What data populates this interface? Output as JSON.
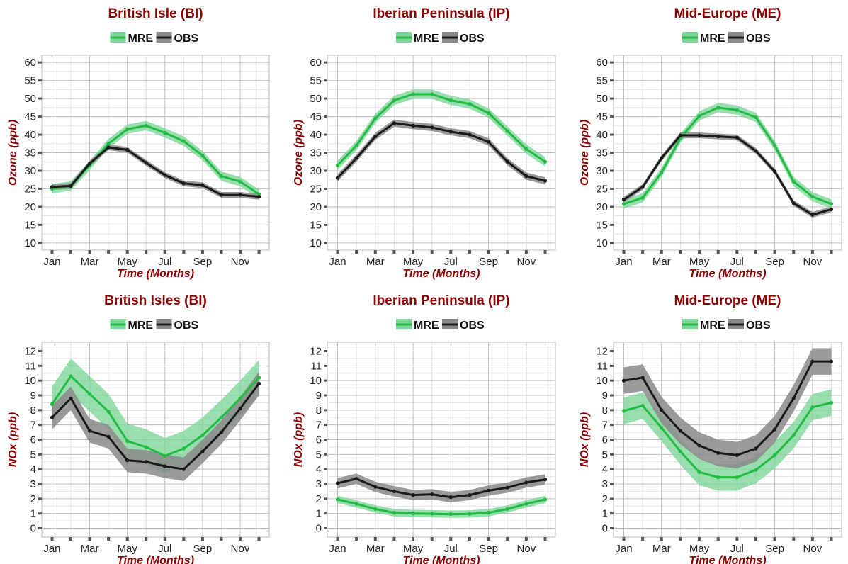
{
  "figure": {
    "colors": {
      "title": "#8B0000",
      "axis_label": "#8B0000",
      "mre_line": "#22BB44",
      "mre_band": "#7FD69A",
      "obs_line": "#1A1A1A",
      "obs_band": "#8A8A8A",
      "panel_border": "#BBBBBB",
      "grid_major": "#BDBDBD",
      "grid_minor": "#E2E2E2"
    }
  },
  "chart_data": [
    {
      "type": "line",
      "title": "British Isle (BI)",
      "xlabel": "Time (Months)",
      "ylabel": "Ozone (ppb)",
      "x_ticks": [
        "Jan",
        "Mar",
        "May",
        "Jul",
        "Sep",
        "Nov"
      ],
      "y_ticks": [
        10,
        15,
        20,
        25,
        30,
        35,
        40,
        45,
        50,
        55,
        60
      ],
      "ylim": [
        8,
        62
      ],
      "legend": [
        "MRE",
        "OBS"
      ],
      "legend_position": "top",
      "grid": true,
      "x": [
        "Jan",
        "Feb",
        "Mar",
        "Apr",
        "May",
        "Jun",
        "Jul",
        "Aug",
        "Sep",
        "Oct",
        "Nov",
        "Dec"
      ],
      "series": [
        {
          "name": "MRE",
          "values": [
            25.0,
            25.8,
            31.5,
            37.5,
            41.5,
            42.5,
            40.5,
            38.2,
            34.2,
            28.5,
            27.0,
            23.5
          ],
          "band": 1.3
        },
        {
          "name": "OBS",
          "values": [
            25.5,
            25.8,
            32.0,
            36.5,
            35.8,
            32.2,
            28.8,
            26.5,
            26.0,
            23.3,
            23.3,
            22.8
          ],
          "band": 0.8
        }
      ]
    },
    {
      "type": "line",
      "title": "Iberian Peninsula (IP)",
      "xlabel": "Time (Months)",
      "ylabel": "Ozone (ppb)",
      "x_ticks": [
        "Jan",
        "Mar",
        "May",
        "Jul",
        "Sep",
        "Nov"
      ],
      "y_ticks": [
        10,
        15,
        20,
        25,
        30,
        35,
        40,
        45,
        50,
        55,
        60
      ],
      "ylim": [
        8,
        62
      ],
      "legend": [
        "MRE",
        "OBS"
      ],
      "legend_position": "top",
      "grid": true,
      "x": [
        "Jan",
        "Feb",
        "Mar",
        "Apr",
        "May",
        "Jun",
        "Jul",
        "Aug",
        "Sep",
        "Oct",
        "Nov",
        "Dec"
      ],
      "series": [
        {
          "name": "MRE",
          "values": [
            31.5,
            37.0,
            44.5,
            49.5,
            51.2,
            51.2,
            49.5,
            48.5,
            46.0,
            41.0,
            36.0,
            32.5
          ],
          "band": 1.3
        },
        {
          "name": "OBS",
          "values": [
            28.0,
            33.5,
            39.5,
            43.2,
            42.5,
            42.0,
            40.8,
            40.0,
            38.0,
            32.5,
            28.5,
            27.2
          ],
          "band": 1.0
        }
      ]
    },
    {
      "type": "line",
      "title": "Mid-Europe (ME)",
      "xlabel": "Time (Months)",
      "ylabel": "Ozone (ppb)",
      "x_ticks": [
        "Jan",
        "Mar",
        "May",
        "Jul",
        "Sep",
        "Nov"
      ],
      "y_ticks": [
        10,
        15,
        20,
        25,
        30,
        35,
        40,
        45,
        50,
        55,
        60
      ],
      "ylim": [
        8,
        62
      ],
      "legend": [
        "MRE",
        "OBS"
      ],
      "legend_position": "top",
      "grid": true,
      "x": [
        "Jan",
        "Feb",
        "Mar",
        "Apr",
        "May",
        "Jun",
        "Jul",
        "Aug",
        "Sep",
        "Oct",
        "Nov",
        "Dec"
      ],
      "series": [
        {
          "name": "MRE",
          "values": [
            20.8,
            22.5,
            29.5,
            39.0,
            45.2,
            47.5,
            46.8,
            44.8,
            37.0,
            27.0,
            22.8,
            20.8
          ],
          "band": 1.3
        },
        {
          "name": "OBS",
          "values": [
            22.0,
            25.5,
            33.5,
            39.8,
            39.8,
            39.5,
            39.2,
            35.5,
            29.8,
            21.0,
            17.8,
            19.3
          ],
          "band": 0.8
        }
      ]
    },
    {
      "type": "line",
      "title": "British Isles (BI)",
      "xlabel": "Time (Months)",
      "ylabel": "NOx (ppb)",
      "x_ticks": [
        "Jan",
        "Mar",
        "May",
        "Jul",
        "Sep",
        "Nov"
      ],
      "y_ticks": [
        0,
        1,
        2,
        3,
        4,
        5,
        6,
        7,
        8,
        9,
        10,
        11,
        12
      ],
      "ylim": [
        -0.6,
        12.6
      ],
      "legend": [
        "MRE",
        "OBS"
      ],
      "legend_position": "top",
      "grid": true,
      "x": [
        "Jan",
        "Feb",
        "Mar",
        "Apr",
        "May",
        "Jun",
        "Jul",
        "Aug",
        "Sep",
        "Oct",
        "Nov",
        "Dec"
      ],
      "series": [
        {
          "name": "MRE",
          "values": [
            8.4,
            10.3,
            9.1,
            7.9,
            5.9,
            5.5,
            4.9,
            5.4,
            6.3,
            7.5,
            8.8,
            10.2
          ],
          "band": 1.2
        },
        {
          "name": "OBS",
          "values": [
            7.5,
            8.8,
            6.6,
            6.2,
            4.6,
            4.5,
            4.2,
            4.0,
            5.2,
            6.5,
            8.1,
            9.8
          ],
          "band": 0.8
        }
      ]
    },
    {
      "type": "line",
      "title": "Iberian Peninsula (IP)",
      "xlabel": "Time (Months)",
      "ylabel": "NOx (ppb)",
      "x_ticks": [
        "Jan",
        "Mar",
        "May",
        "Jul",
        "Sep",
        "Nov"
      ],
      "y_ticks": [
        0,
        1,
        2,
        3,
        4,
        5,
        6,
        7,
        8,
        9,
        10,
        11,
        12
      ],
      "ylim": [
        -0.6,
        12.6
      ],
      "legend": [
        "MRE",
        "OBS"
      ],
      "legend_position": "top",
      "grid": true,
      "x": [
        "Jan",
        "Feb",
        "Mar",
        "Apr",
        "May",
        "Jun",
        "Jul",
        "Aug",
        "Sep",
        "Oct",
        "Nov",
        "Dec"
      ],
      "series": [
        {
          "name": "MRE",
          "values": [
            1.95,
            1.65,
            1.3,
            1.05,
            1.0,
            0.98,
            0.95,
            0.97,
            1.05,
            1.3,
            1.65,
            1.95
          ],
          "band": 0.25
        },
        {
          "name": "OBS",
          "values": [
            3.05,
            3.35,
            2.8,
            2.5,
            2.25,
            2.3,
            2.1,
            2.25,
            2.55,
            2.75,
            3.1,
            3.3
          ],
          "band": 0.35
        }
      ]
    },
    {
      "type": "line",
      "title": "Mid-Europe (ME)",
      "xlabel": "Time (Months)",
      "ylabel": "NOx (ppb)",
      "x_ticks": [
        "Jan",
        "Mar",
        "May",
        "Jul",
        "Sep",
        "Nov"
      ],
      "y_ticks": [
        0,
        1,
        2,
        3,
        4,
        5,
        6,
        7,
        8,
        9,
        10,
        11,
        12
      ],
      "ylim": [
        -0.6,
        12.6
      ],
      "legend": [
        "MRE",
        "OBS"
      ],
      "legend_position": "top",
      "grid": true,
      "x": [
        "Jan",
        "Feb",
        "Mar",
        "Apr",
        "May",
        "Jun",
        "Jul",
        "Aug",
        "Sep",
        "Oct",
        "Nov",
        "Dec"
      ],
      "series": [
        {
          "name": "MRE",
          "values": [
            7.95,
            8.3,
            6.8,
            5.2,
            3.8,
            3.45,
            3.45,
            3.95,
            4.95,
            6.3,
            8.2,
            8.5
          ],
          "band": 0.9
        },
        {
          "name": "OBS",
          "values": [
            10.0,
            10.2,
            8.0,
            6.6,
            5.6,
            5.1,
            4.95,
            5.4,
            6.7,
            8.8,
            11.3,
            11.3
          ],
          "band": 0.9
        }
      ]
    }
  ]
}
